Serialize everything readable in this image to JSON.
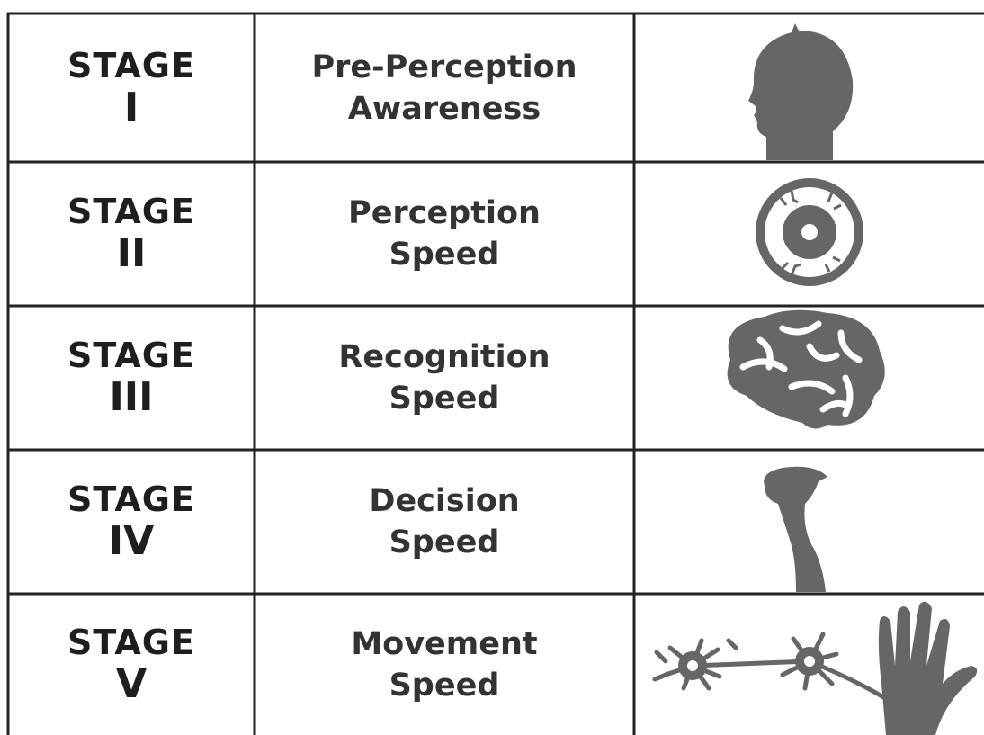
{
  "rows": [
    {
      "stage": "STAGE",
      "numeral": "I",
      "title": [
        "Pre-Perception",
        "Awareness"
      ]
    },
    {
      "stage": "STAGE",
      "numeral": "II",
      "title": [
        "Perception",
        "Speed"
      ]
    },
    {
      "stage": "STAGE",
      "numeral": "III",
      "title": [
        "Recognition",
        "Speed"
      ]
    },
    {
      "stage": "STAGE",
      "numeral": "IV",
      "title": [
        "Decision",
        "Speed"
      ]
    },
    {
      "stage": "STAGE",
      "numeral": "V",
      "title": [
        "Movement",
        "Speed"
      ]
    }
  ]
}
